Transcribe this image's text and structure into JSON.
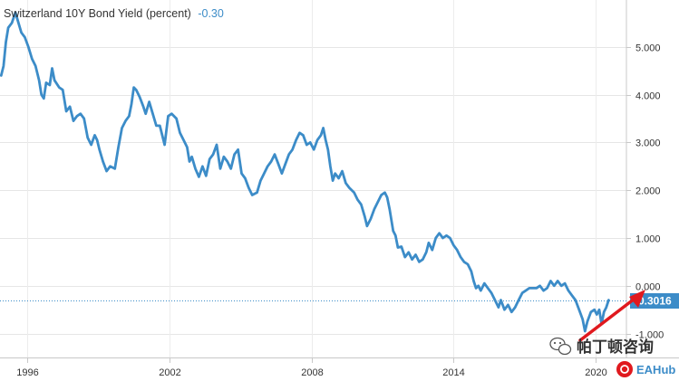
{
  "chart_data": {
    "type": "line",
    "title": "Switzerland 10Y Bond Yield (percent)",
    "title_value": "-0.30",
    "last_value_label": "-0.3016",
    "x_tick_labels": [
      "1996",
      "2002",
      "2008",
      "2014",
      "2020"
    ],
    "y_tick_labels": [
      "5.000",
      "4.000",
      "3.000",
      "2.000",
      "1.000",
      "0.000",
      "-1.000"
    ],
    "xlim": [
      1994.85,
      2021.3
    ],
    "ylim": [
      -1.5,
      5.98
    ],
    "grid": true,
    "series": [
      {
        "color": "#3c8cc8",
        "points": [
          [
            1994.9,
            4.4
          ],
          [
            1995.0,
            4.6
          ],
          [
            1995.1,
            5.1
          ],
          [
            1995.2,
            5.4
          ],
          [
            1995.35,
            5.5
          ],
          [
            1995.5,
            5.72
          ],
          [
            1995.6,
            5.55
          ],
          [
            1995.75,
            5.3
          ],
          [
            1995.9,
            5.2
          ],
          [
            1996.05,
            5.0
          ],
          [
            1996.2,
            4.75
          ],
          [
            1996.35,
            4.6
          ],
          [
            1996.5,
            4.3
          ],
          [
            1996.6,
            4.0
          ],
          [
            1996.7,
            3.92
          ],
          [
            1996.8,
            4.25
          ],
          [
            1996.95,
            4.2
          ],
          [
            1997.05,
            4.55
          ],
          [
            1997.15,
            4.3
          ],
          [
            1997.35,
            4.15
          ],
          [
            1997.5,
            4.1
          ],
          [
            1997.65,
            3.65
          ],
          [
            1997.8,
            3.75
          ],
          [
            1997.95,
            3.45
          ],
          [
            1998.1,
            3.55
          ],
          [
            1998.25,
            3.6
          ],
          [
            1998.4,
            3.5
          ],
          [
            1998.55,
            3.1
          ],
          [
            1998.7,
            2.95
          ],
          [
            1998.85,
            3.15
          ],
          [
            1998.95,
            3.05
          ],
          [
            1999.05,
            2.85
          ],
          [
            1999.2,
            2.6
          ],
          [
            1999.35,
            2.4
          ],
          [
            1999.5,
            2.5
          ],
          [
            1999.7,
            2.45
          ],
          [
            1999.85,
            2.9
          ],
          [
            2000.0,
            3.3
          ],
          [
            2000.15,
            3.45
          ],
          [
            2000.3,
            3.55
          ],
          [
            2000.4,
            3.8
          ],
          [
            2000.5,
            4.15
          ],
          [
            2000.6,
            4.1
          ],
          [
            2000.75,
            3.95
          ],
          [
            2000.9,
            3.75
          ],
          [
            2001.0,
            3.6
          ],
          [
            2001.15,
            3.85
          ],
          [
            2001.3,
            3.6
          ],
          [
            2001.45,
            3.35
          ],
          [
            2001.6,
            3.35
          ],
          [
            2001.8,
            2.95
          ],
          [
            2001.95,
            3.55
          ],
          [
            2002.1,
            3.6
          ],
          [
            2002.3,
            3.5
          ],
          [
            2002.45,
            3.2
          ],
          [
            2002.6,
            3.05
          ],
          [
            2002.75,
            2.9
          ],
          [
            2002.85,
            2.6
          ],
          [
            2002.95,
            2.7
          ],
          [
            2003.1,
            2.45
          ],
          [
            2003.25,
            2.28
          ],
          [
            2003.4,
            2.5
          ],
          [
            2003.55,
            2.3
          ],
          [
            2003.7,
            2.65
          ],
          [
            2003.85,
            2.75
          ],
          [
            2004.0,
            2.95
          ],
          [
            2004.15,
            2.45
          ],
          [
            2004.3,
            2.7
          ],
          [
            2004.45,
            2.6
          ],
          [
            2004.6,
            2.45
          ],
          [
            2004.75,
            2.75
          ],
          [
            2004.9,
            2.85
          ],
          [
            2005.05,
            2.35
          ],
          [
            2005.2,
            2.25
          ],
          [
            2005.35,
            2.05
          ],
          [
            2005.5,
            1.9
          ],
          [
            2005.7,
            1.95
          ],
          [
            2005.85,
            2.2
          ],
          [
            2006.0,
            2.35
          ],
          [
            2006.15,
            2.5
          ],
          [
            2006.3,
            2.6
          ],
          [
            2006.45,
            2.75
          ],
          [
            2006.6,
            2.55
          ],
          [
            2006.75,
            2.35
          ],
          [
            2006.9,
            2.55
          ],
          [
            2007.05,
            2.75
          ],
          [
            2007.2,
            2.85
          ],
          [
            2007.35,
            3.05
          ],
          [
            2007.5,
            3.2
          ],
          [
            2007.65,
            3.15
          ],
          [
            2007.8,
            2.95
          ],
          [
            2007.95,
            3.0
          ],
          [
            2008.1,
            2.85
          ],
          [
            2008.25,
            3.05
          ],
          [
            2008.4,
            3.15
          ],
          [
            2008.5,
            3.3
          ],
          [
            2008.6,
            3.05
          ],
          [
            2008.7,
            2.85
          ],
          [
            2008.8,
            2.5
          ],
          [
            2008.9,
            2.2
          ],
          [
            2009.0,
            2.35
          ],
          [
            2009.15,
            2.25
          ],
          [
            2009.3,
            2.4
          ],
          [
            2009.45,
            2.15
          ],
          [
            2009.6,
            2.05
          ],
          [
            2009.8,
            1.95
          ],
          [
            2009.95,
            1.8
          ],
          [
            2010.1,
            1.7
          ],
          [
            2010.25,
            1.45
          ],
          [
            2010.35,
            1.25
          ],
          [
            2010.5,
            1.4
          ],
          [
            2010.65,
            1.6
          ],
          [
            2010.8,
            1.75
          ],
          [
            2010.95,
            1.9
          ],
          [
            2011.1,
            1.95
          ],
          [
            2011.2,
            1.85
          ],
          [
            2011.3,
            1.6
          ],
          [
            2011.45,
            1.15
          ],
          [
            2011.55,
            1.05
          ],
          [
            2011.65,
            0.8
          ],
          [
            2011.8,
            0.82
          ],
          [
            2011.95,
            0.6
          ],
          [
            2012.1,
            0.7
          ],
          [
            2012.25,
            0.55
          ],
          [
            2012.4,
            0.65
          ],
          [
            2012.55,
            0.5
          ],
          [
            2012.7,
            0.55
          ],
          [
            2012.85,
            0.7
          ],
          [
            2012.95,
            0.9
          ],
          [
            2013.1,
            0.75
          ],
          [
            2013.25,
            1.0
          ],
          [
            2013.4,
            1.1
          ],
          [
            2013.55,
            1.0
          ],
          [
            2013.7,
            1.05
          ],
          [
            2013.85,
            1.0
          ],
          [
            2014.0,
            0.85
          ],
          [
            2014.15,
            0.75
          ],
          [
            2014.3,
            0.6
          ],
          [
            2014.45,
            0.5
          ],
          [
            2014.6,
            0.45
          ],
          [
            2014.75,
            0.3
          ],
          [
            2014.85,
            0.1
          ],
          [
            2014.95,
            -0.05
          ],
          [
            2015.05,
            0.0
          ],
          [
            2015.15,
            -0.1
          ],
          [
            2015.3,
            0.05
          ],
          [
            2015.45,
            -0.05
          ],
          [
            2015.6,
            -0.15
          ],
          [
            2015.75,
            -0.3
          ],
          [
            2015.9,
            -0.45
          ],
          [
            2016.0,
            -0.3
          ],
          [
            2016.15,
            -0.5
          ],
          [
            2016.3,
            -0.4
          ],
          [
            2016.45,
            -0.55
          ],
          [
            2016.6,
            -0.45
          ],
          [
            2016.75,
            -0.3
          ],
          [
            2016.9,
            -0.15
          ],
          [
            2017.05,
            -0.1
          ],
          [
            2017.2,
            -0.05
          ],
          [
            2017.35,
            -0.05
          ],
          [
            2017.5,
            -0.05
          ],
          [
            2017.65,
            0.0
          ],
          [
            2017.8,
            -0.1
          ],
          [
            2017.95,
            -0.05
          ],
          [
            2018.1,
            0.1
          ],
          [
            2018.25,
            0.0
          ],
          [
            2018.4,
            0.1
          ],
          [
            2018.55,
            0.0
          ],
          [
            2018.7,
            0.05
          ],
          [
            2018.85,
            -0.1
          ],
          [
            2019.0,
            -0.2
          ],
          [
            2019.15,
            -0.3
          ],
          [
            2019.3,
            -0.5
          ],
          [
            2019.45,
            -0.7
          ],
          [
            2019.55,
            -0.95
          ],
          [
            2019.65,
            -0.75
          ],
          [
            2019.8,
            -0.55
          ],
          [
            2019.95,
            -0.5
          ],
          [
            2020.05,
            -0.6
          ],
          [
            2020.15,
            -0.5
          ],
          [
            2020.25,
            -0.8
          ],
          [
            2020.35,
            -0.55
          ],
          [
            2020.45,
            -0.45
          ],
          [
            2020.55,
            -0.3
          ]
        ]
      }
    ]
  },
  "watermark": {
    "icon": "wechat-icon",
    "text": "帕丁顿咨询",
    "badge_icon": "ea-logo-icon",
    "badge_text": "EAHub",
    "arrow_color": "#e0191e"
  }
}
